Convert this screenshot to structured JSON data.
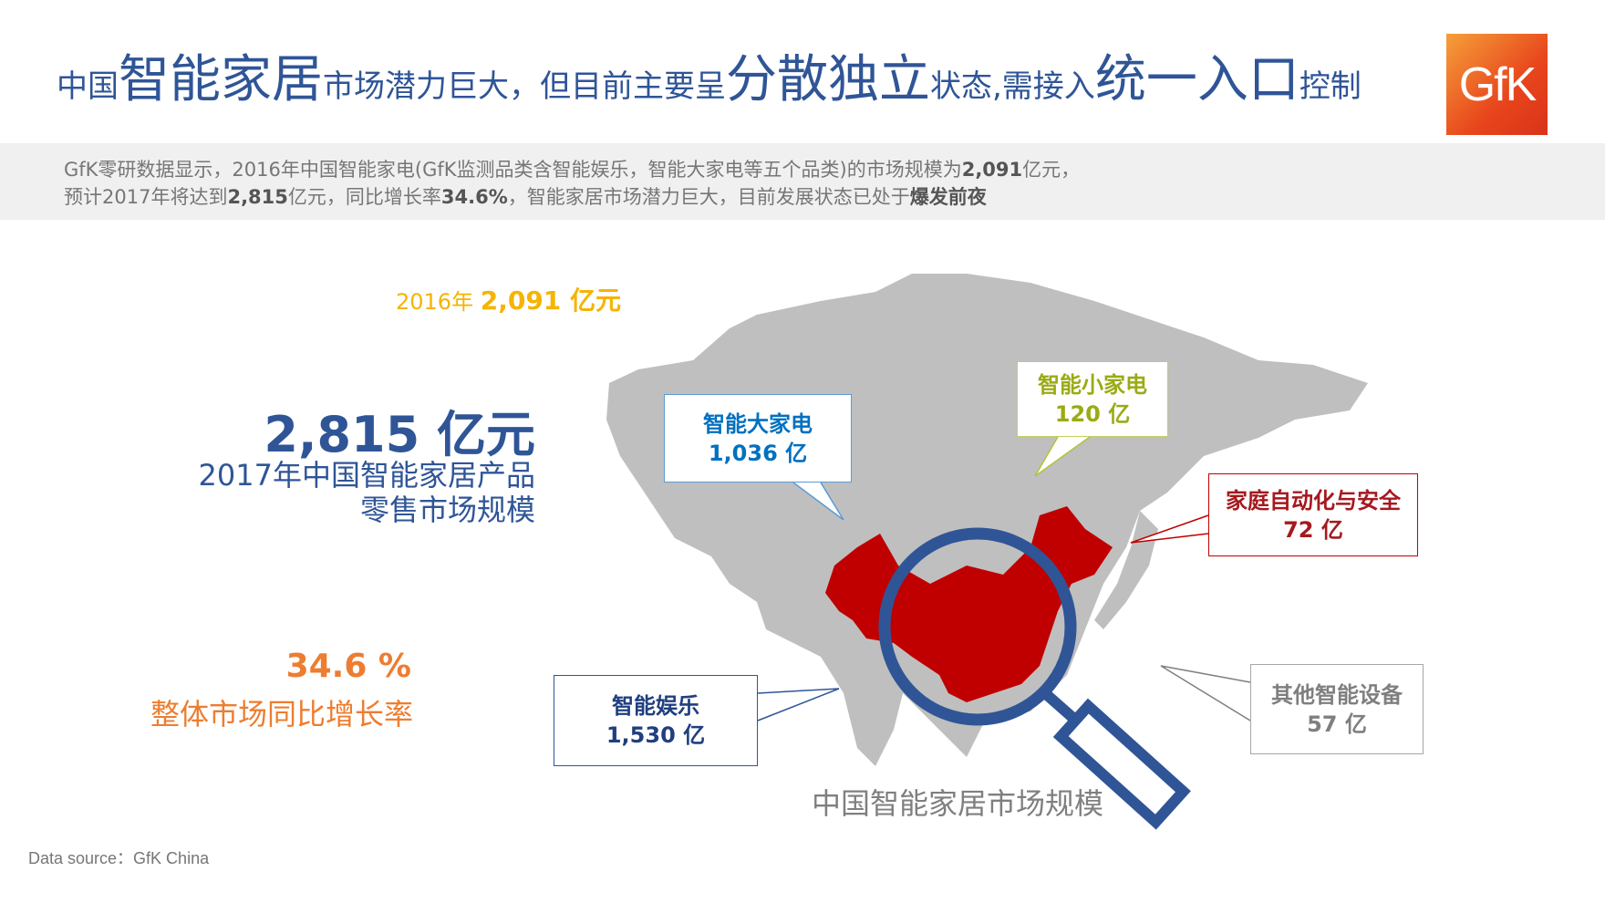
{
  "header": {
    "title_parts": [
      "中国",
      "智能家居",
      "市场潜力巨大，但目前主要呈",
      "分散独立",
      "状态,需接入",
      "统一入口",
      "控制"
    ],
    "logo": "GfK"
  },
  "summary": {
    "line1_a": "GfK零研数据显示，2016年中国智能家电(GfK监测品类含智能娱乐，智能大家电等五个品类)的市场规模为",
    "line1_b": "2,091",
    "line1_c": "亿元，",
    "line2_a": "预计2017年将达到",
    "line2_b": "2,815",
    "line2_c": "亿元，同比增长率",
    "line2_d": "34.6%",
    "line2_e": "，智能家居市场潜力巨大，目前发展状态已处于",
    "line2_f": "爆发前夜"
  },
  "stats": {
    "y2016_label": "2016年",
    "y2016_value": "2,091 亿元",
    "y2017_value": "2,815 亿元",
    "y2017_label1": "2017年中国智能家居产品",
    "y2017_label2": "零售市场规模",
    "growth_value": "34.6 %",
    "growth_label": "整体市场同比增长率"
  },
  "callouts": [
    {
      "name": "智能大家电",
      "value": "1,036 亿",
      "color": "#0070c0"
    },
    {
      "name": "智能小家电",
      "value": "120 亿",
      "color": "#9aab14"
    },
    {
      "name": "家庭自动化与安全",
      "value": "72 亿",
      "color": "#a5191f"
    },
    {
      "name": "智能娱乐",
      "value": "1,530 亿",
      "color": "#203f80"
    },
    {
      "name": "其他智能设备",
      "value": "57 亿",
      "color": "#7f7f7f"
    }
  ],
  "map_caption": "中国智能家居市场规模",
  "source": "Data source：GfK China",
  "colors": {
    "title": "#2f5597",
    "china": "#c00000",
    "land": "#bfbfbf",
    "magnifier": "#2f5597"
  }
}
